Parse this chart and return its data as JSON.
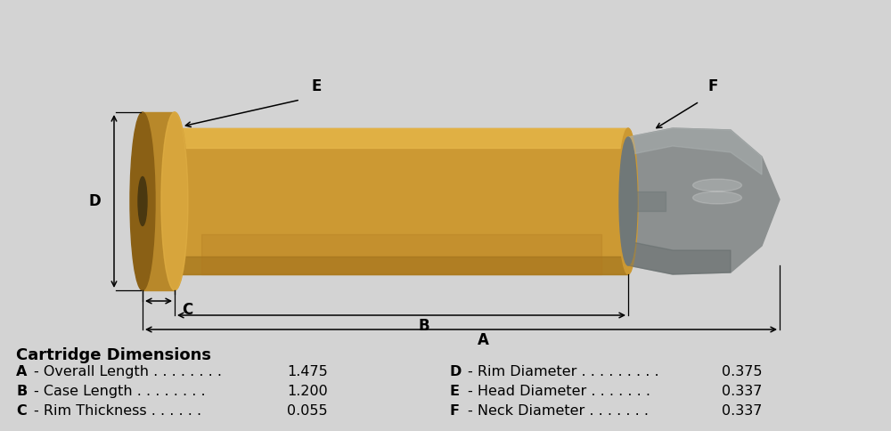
{
  "bg_color": "#d3d3d3",
  "title": "Cartridge Dimensions",
  "dimensions_left": [
    {
      "label": "A",
      "name": "Overall Length",
      "dots": ". . . . . . . .",
      "value": "1.475"
    },
    {
      "label": "B",
      "name": "Case Length",
      "dots": ". . . . . . . .",
      "value": "1.200"
    },
    {
      "label": "C",
      "name": "Rim Thickness",
      "dots": ". . . . . .",
      "value": "0.055"
    }
  ],
  "dimensions_right": [
    {
      "label": "D",
      "name": "Rim Diameter",
      "dots": ". . . . . . . . .",
      "value": "0.375"
    },
    {
      "label": "E",
      "name": "Head Diameter",
      "dots": ". . . . . . .",
      "value": "0.337"
    },
    {
      "label": "F",
      "name": "Neck Diameter",
      "dots": ". . . . . . .",
      "value": "0.337"
    }
  ],
  "brass_main": "#cc9933",
  "brass_light": "#e8b84b",
  "brass_dark": "#9a6e1a",
  "brass_shadow": "#b07820",
  "rim_main": "#b8882a",
  "rim_dark": "#8a6015",
  "bullet_main": "#8c9090",
  "bullet_light": "#aab0b0",
  "bullet_dark": "#606868",
  "bullet_shadow": "#707878"
}
